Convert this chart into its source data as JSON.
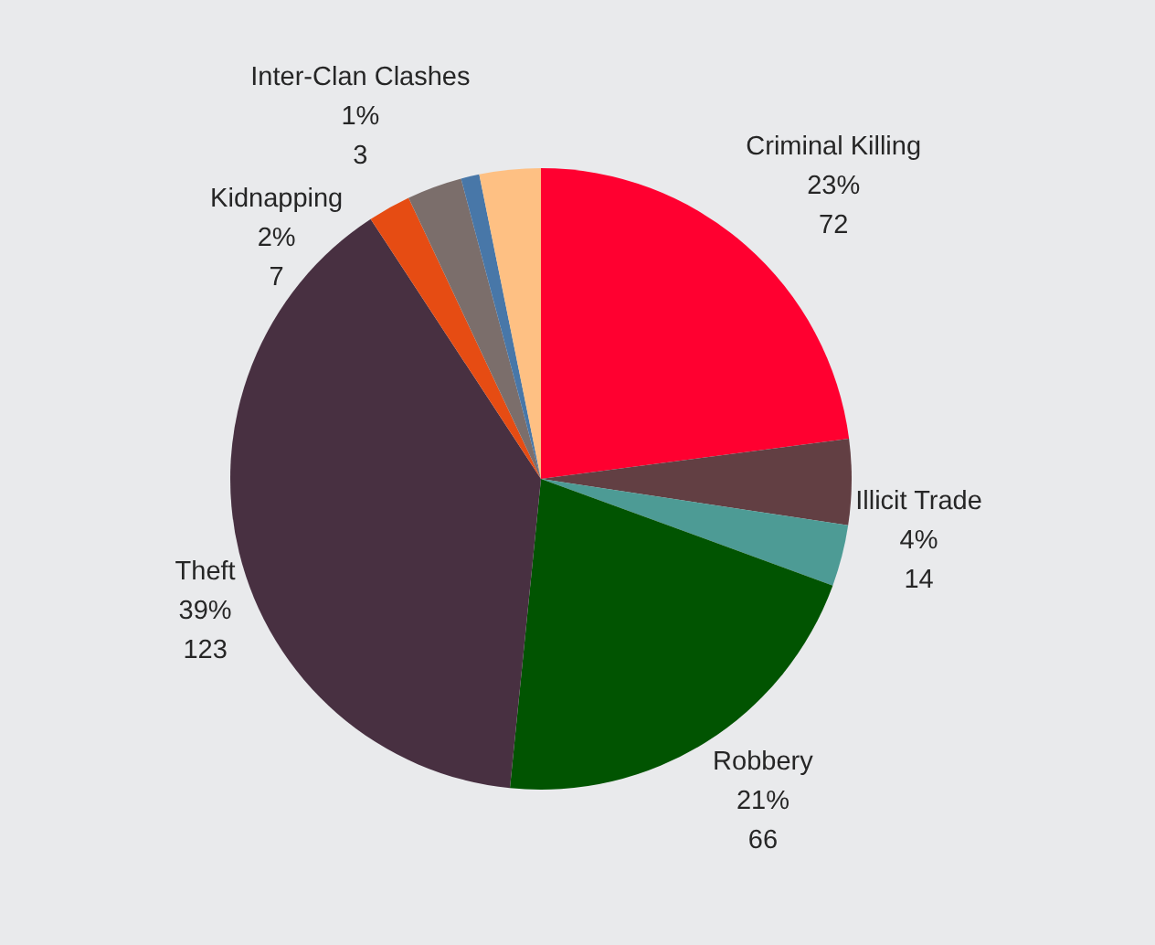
{
  "chart_data": {
    "type": "pie",
    "categories": [
      "Criminal Killing",
      "Illicit Trade",
      null,
      "Robbery",
      "Theft",
      "Kidnapping",
      null,
      "Inter-Clan Clashes",
      null
    ],
    "values": [
      72,
      14,
      10,
      66,
      123,
      7,
      9,
      3,
      10
    ],
    "colors": [
      "#ff0030",
      "#623f43",
      "#4d9b95",
      "#015401",
      "#483041",
      "#e64c13",
      "#7b6e6b",
      "#4877a8",
      "#fec083"
    ],
    "value_labels": [
      "23%\n72",
      "4%\n14",
      null,
      "21%\n66",
      "39%\n123",
      "2%\n7",
      null,
      "1%\n3",
      null
    ]
  }
}
